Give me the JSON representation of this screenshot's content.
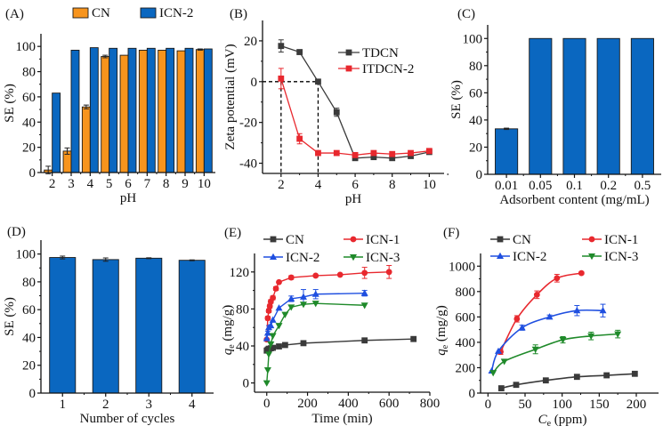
{
  "colors": {
    "blue": "#0a67c0",
    "orange": "#f7941d",
    "black": "#3a3a3a",
    "red": "#e8282e",
    "bright_blue": "#1f4fe0",
    "green": "#1f8a2a",
    "axis": "#111111"
  },
  "chart_data": [
    {
      "id": "A",
      "panel_label": "(A)",
      "type": "bar",
      "title": "",
      "xlabel": "pH",
      "ylabel": "SE (%)",
      "categories": [
        "2",
        "3",
        "4",
        "5",
        "6",
        "7",
        "8",
        "9",
        "10"
      ],
      "ylim": [
        0,
        110
      ],
      "yticks": [
        0,
        20,
        40,
        60,
        80,
        100
      ],
      "legend": "top",
      "series": [
        {
          "name": "CN",
          "color_key": "orange",
          "values": [
            2,
            17,
            52,
            92,
            93,
            97,
            97,
            96.5,
            97.5
          ],
          "errors": [
            3,
            2.5,
            1.5,
            1,
            0,
            0,
            0,
            0,
            0.5
          ]
        },
        {
          "name": "ICN-2",
          "color_key": "blue",
          "values": [
            63,
            97,
            99,
            98.5,
            98.5,
            98.5,
            98.5,
            98.5,
            98
          ],
          "errors": [
            0,
            0,
            0,
            0,
            0,
            0,
            0,
            0,
            0
          ]
        }
      ]
    },
    {
      "id": "B",
      "panel_label": "(B)",
      "type": "line",
      "title": "",
      "xlabel": "pH",
      "ylabel": "Zeta potential (mV)",
      "xlim": [
        1,
        10.8
      ],
      "ylim": [
        -45,
        30
      ],
      "xticks": [
        2,
        4,
        6,
        8,
        10
      ],
      "yticks": [
        -40,
        -20,
        0,
        20
      ],
      "legend": "top-right",
      "annotations": [
        {
          "type": "dashed-guide",
          "x": 2,
          "y": 0
        },
        {
          "type": "dashed-guide",
          "x": 4,
          "y": 0
        }
      ],
      "series": [
        {
          "name": "TDCN",
          "color_key": "black",
          "marker": "square",
          "x": [
            2,
            3,
            4,
            5,
            6,
            7,
            8,
            9,
            10
          ],
          "y": [
            17.5,
            14.5,
            0,
            -15,
            -37.5,
            -37,
            -37.5,
            -36.5,
            -34.5
          ],
          "errors": [
            3,
            0,
            1,
            2,
            0.5,
            0.5,
            0.5,
            0,
            0
          ]
        },
        {
          "name": "ITDCN-2",
          "color_key": "red",
          "marker": "square",
          "x": [
            2,
            3,
            4,
            5,
            6,
            7,
            8,
            9,
            10
          ],
          "y": [
            1.5,
            -28,
            -35,
            -35,
            -36,
            -35,
            -35.5,
            -35,
            -34
          ],
          "errors": [
            5,
            2.5,
            0,
            0,
            0,
            0,
            0,
            0,
            1
          ]
        }
      ]
    },
    {
      "id": "C",
      "panel_label": "(C)",
      "type": "bar",
      "title": "",
      "xlabel": "Adsorbent content (mg/mL)",
      "ylabel": "SE (%)",
      "categories": [
        "0.01",
        "0.05",
        "0.1",
        "0.2",
        "0.5"
      ],
      "ylim": [
        0,
        110
      ],
      "yticks": [
        0,
        20,
        40,
        60,
        80,
        100
      ],
      "legend": "none",
      "series": [
        {
          "name": "SE",
          "color_key": "blue",
          "values": [
            33.5,
            100,
            100,
            100,
            100
          ],
          "errors": [
            0.5,
            0,
            0,
            0,
            0
          ]
        }
      ]
    },
    {
      "id": "D",
      "panel_label": "(D)",
      "type": "bar",
      "title": "",
      "xlabel": "Number of cycles",
      "ylabel": "SE (%)",
      "categories": [
        "1",
        "2",
        "3",
        "4"
      ],
      "ylim": [
        0,
        110
      ],
      "yticks": [
        0,
        20,
        40,
        60,
        80,
        100
      ],
      "legend": "none",
      "series": [
        {
          "name": "SE",
          "color_key": "blue",
          "values": [
            97.5,
            96,
            97,
            95.5
          ],
          "errors": [
            1,
            1.2,
            0.3,
            0.3
          ]
        }
      ]
    },
    {
      "id": "E",
      "panel_label": "(E)",
      "type": "line",
      "title": "",
      "xlabel": "Time (min)",
      "ylabel_italic": "q",
      "ylabel_sub": "e",
      "ylabel_rest": " (mg/g)",
      "xlim": [
        -60,
        800
      ],
      "ylim": [
        -10,
        140
      ],
      "xticks": [
        0,
        200,
        400,
        600,
        800
      ],
      "yticks": [
        0,
        40,
        80,
        120
      ],
      "legend": "top",
      "series": [
        {
          "name": "CN",
          "color_key": "black",
          "marker": "square",
          "x": [
            0,
            5,
            10,
            20,
            30,
            60,
            90,
            180,
            480,
            720
          ],
          "y": [
            35,
            36,
            37,
            37.5,
            38,
            39.5,
            41,
            43,
            46,
            47.5
          ],
          "errors": [
            0,
            0,
            0,
            0,
            0,
            0,
            0,
            0,
            0,
            0
          ]
        },
        {
          "name": "ICN-1",
          "color_key": "red",
          "marker": "circle",
          "x": [
            0,
            5,
            10,
            15,
            20,
            30,
            45,
            60,
            120,
            240,
            360,
            480,
            600
          ],
          "y": [
            47,
            70,
            78,
            83,
            88,
            92,
            102,
            109,
            114,
            116,
            117,
            119,
            120
          ],
          "errors": [
            0,
            2,
            2,
            2,
            2,
            2,
            2,
            1,
            2,
            0,
            0,
            6,
            7
          ]
        },
        {
          "name": "ICN-2",
          "color_key": "bright_blue",
          "marker": "triangle-up",
          "x": [
            0,
            5,
            10,
            20,
            30,
            60,
            120,
            180,
            240,
            480
          ],
          "y": [
            48,
            54,
            60,
            62,
            68,
            81,
            91,
            93,
            96,
            97
          ],
          "errors": [
            0,
            2,
            2,
            0,
            0,
            0,
            3,
            8,
            5,
            3
          ]
        },
        {
          "name": "ICN-3",
          "color_key": "green",
          "marker": "triangle-down",
          "x": [
            0,
            5,
            10,
            20,
            30,
            60,
            90,
            120,
            180,
            240,
            480
          ],
          "y": [
            0,
            14,
            31,
            42,
            51,
            62,
            74,
            82,
            85,
            86,
            84
          ],
          "errors": [
            0,
            0,
            0,
            0,
            0,
            0,
            0,
            0,
            0,
            0,
            0
          ]
        }
      ]
    },
    {
      "id": "F",
      "panel_label": "(F)",
      "type": "line",
      "title": "",
      "xlabel_italic": "C",
      "xlabel_sub": "e",
      "xlabel_rest": " (ppm)",
      "ylabel_italic": "q",
      "ylabel_sub": "e",
      "ylabel_rest": " (mg/g)",
      "xlim": [
        -10,
        230
      ],
      "ylim": [
        0,
        1100
      ],
      "xticks": [
        0,
        50,
        100,
        150,
        200
      ],
      "yticks": [
        0,
        200,
        400,
        600,
        800,
        1000
      ],
      "legend": "top",
      "series": [
        {
          "name": "CN",
          "color_key": "black",
          "marker": "square",
          "points_x": [
            18,
            38,
            78,
            120,
            160,
            198
          ],
          "points_y": [
            38,
            65,
            100,
            128,
            140,
            152
          ],
          "errors": [
            0,
            0,
            0,
            0,
            0,
            0
          ]
        },
        {
          "name": "ICN-1",
          "color_key": "red",
          "marker": "circle",
          "points_x": [
            17,
            39,
            66,
            93,
            126
          ],
          "points_y": [
            325,
            585,
            775,
            905,
            945
          ],
          "errors": [
            20,
            25,
            30,
            30,
            10
          ]
        },
        {
          "name": "ICN-2",
          "color_key": "bright_blue",
          "marker": "triangle-up",
          "points_x": [
            5,
            14,
            46,
            83,
            120,
            155
          ],
          "points_y": [
            175,
            330,
            515,
            600,
            650,
            650
          ],
          "errors": [
            0,
            0,
            20,
            15,
            40,
            50
          ]
        },
        {
          "name": "ICN-3",
          "color_key": "green",
          "marker": "triangle-down",
          "points_x": [
            7,
            22,
            64,
            101,
            139,
            175
          ],
          "points_y": [
            160,
            250,
            345,
            420,
            450,
            465
          ],
          "errors": [
            0,
            0,
            35,
            25,
            30,
            30
          ]
        }
      ]
    }
  ]
}
